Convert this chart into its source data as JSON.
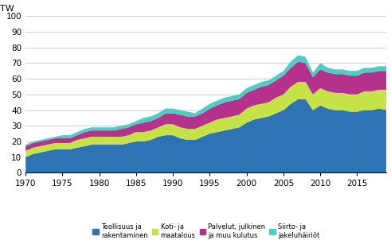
{
  "years": [
    1970,
    1971,
    1972,
    1973,
    1974,
    1975,
    1976,
    1977,
    1978,
    1979,
    1980,
    1981,
    1982,
    1983,
    1984,
    1985,
    1986,
    1987,
    1988,
    1989,
    1990,
    1991,
    1992,
    1993,
    1994,
    1995,
    1996,
    1997,
    1998,
    1999,
    2000,
    2001,
    2002,
    2003,
    2004,
    2005,
    2006,
    2007,
    2008,
    2009,
    2010,
    2011,
    2012,
    2013,
    2014,
    2015,
    2016,
    2017,
    2018,
    2019
  ],
  "teollisuus": [
    10,
    12,
    13,
    14,
    15,
    15,
    15,
    16,
    17,
    18,
    18,
    18,
    18,
    18,
    19,
    20,
    20,
    21,
    23,
    24,
    24,
    22,
    21,
    21,
    23,
    25,
    26,
    27,
    28,
    29,
    32,
    34,
    35,
    36,
    38,
    40,
    44,
    47,
    47,
    40,
    43,
    41,
    40,
    40,
    39,
    39,
    40,
    40,
    41,
    40
  ],
  "koti": [
    4,
    4,
    4,
    4,
    4,
    4,
    4,
    5,
    5,
    5,
    5,
    5,
    5,
    5,
    5,
    6,
    6,
    6,
    6,
    7,
    7,
    7,
    7,
    7,
    7,
    7,
    8,
    8,
    8,
    8,
    9,
    9,
    9,
    9,
    10,
    10,
    11,
    11,
    11,
    10,
    11,
    11,
    11,
    11,
    11,
    11,
    12,
    12,
    12,
    13
  ],
  "palvelut": [
    3,
    3,
    3,
    3,
    3,
    3,
    3,
    3,
    4,
    4,
    4,
    4,
    4,
    5,
    5,
    5,
    6,
    6,
    6,
    7,
    7,
    8,
    8,
    8,
    8,
    9,
    9,
    10,
    10,
    10,
    10,
    10,
    11,
    11,
    11,
    12,
    12,
    13,
    12,
    11,
    12,
    12,
    12,
    12,
    12,
    12,
    12,
    12,
    12,
    12
  ],
  "siirto": [
    1,
    1,
    1,
    1,
    1,
    2,
    2,
    2,
    2,
    2,
    2,
    2,
    2,
    2,
    2,
    2,
    3,
    3,
    3,
    3,
    3,
    3,
    3,
    2,
    3,
    3,
    3,
    3,
    3,
    3,
    3,
    3,
    3,
    3,
    3,
    3,
    4,
    4,
    4,
    3,
    4,
    3,
    3,
    3,
    3,
    3,
    3,
    3,
    3,
    3
  ],
  "colors": {
    "teollisuus": "#2e74b5",
    "koti": "#c5e346",
    "palvelut": "#b4318c",
    "siirto": "#4ecdc4"
  },
  "ylabel": "TW",
  "ylim": [
    0,
    100
  ],
  "yticks": [
    0,
    10,
    20,
    30,
    40,
    50,
    60,
    70,
    80,
    90,
    100
  ],
  "xticks": [
    1970,
    1975,
    1980,
    1985,
    1990,
    1995,
    2000,
    2005,
    2010,
    2015
  ],
  "legend_labels": [
    "Teollisuus ja\nrakentaminen",
    "Koti- ja\nmaatalous",
    "Palvelut, julkinen\nja muu kulutus",
    "Siirto- ja\njakeluhäiriöt"
  ],
  "background_color": "#ffffff"
}
